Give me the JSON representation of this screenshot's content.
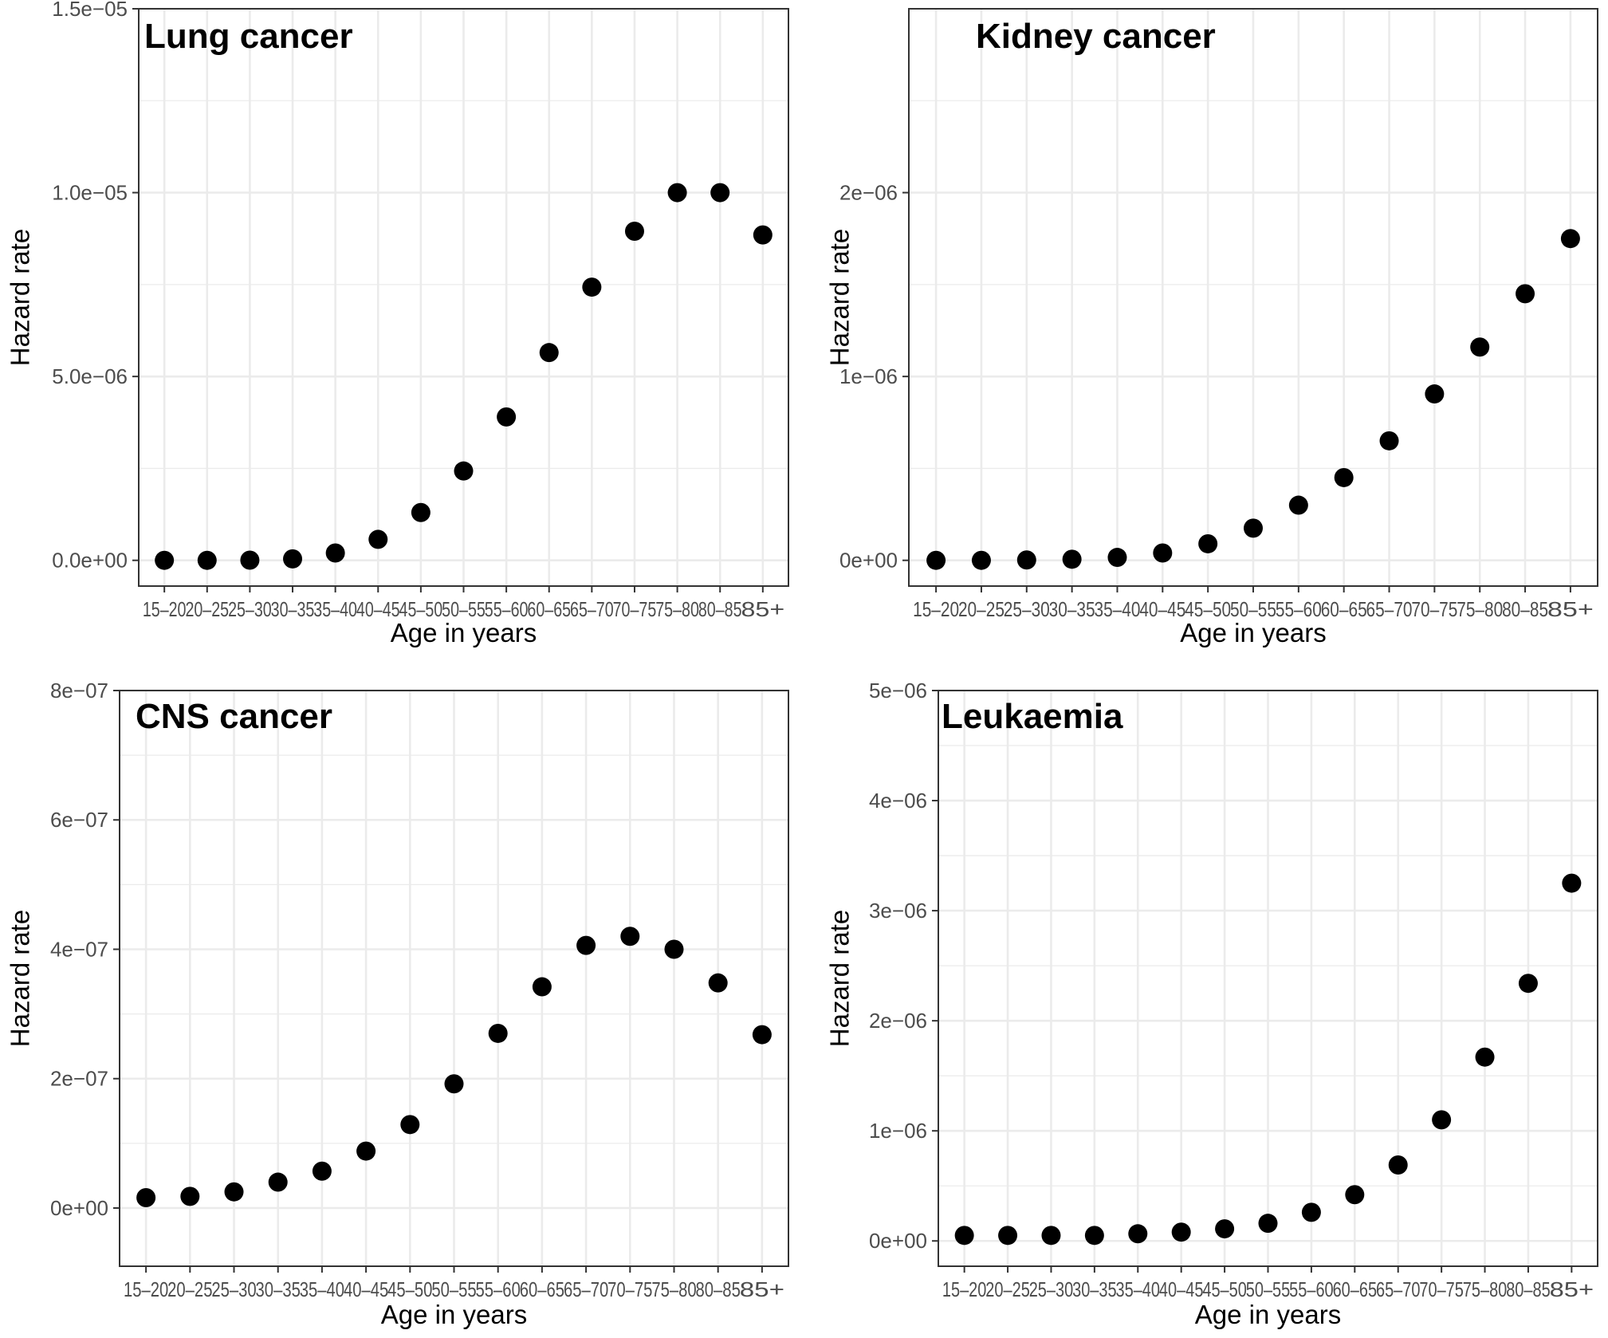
{
  "chart_data": [
    {
      "type": "scatter",
      "title": "Lung cancer",
      "xlabel": "Age in years",
      "ylabel": "Hazard rate",
      "categories": [
        "15–20",
        "20–25",
        "25–30",
        "30–35",
        "35–40",
        "40–45",
        "45–50",
        "50–55",
        "55–60",
        "60–65",
        "65–70",
        "70–75",
        "75–80",
        "80–85",
        "85+"
      ],
      "values": [
        0.0,
        0.0,
        5e-09,
        4e-08,
        2e-07,
        5.7e-07,
        1.3e-06,
        2.43e-06,
        3.9e-06,
        5.65e-06,
        7.43e-06,
        8.95e-06,
        1e-05,
        1e-05,
        8.85e-06
      ],
      "ylim": [
        -7e-07,
        1.5e-05
      ],
      "yticks": [
        0.0,
        5e-06,
        1e-05,
        1.5e-05
      ],
      "ytick_labels": [
        "0.0e+00",
        "5.0e−06",
        "1.0e−05",
        "1.5e−05"
      ]
    },
    {
      "type": "scatter",
      "title": "Kidney cancer",
      "xlabel": "Age in years",
      "ylabel": "Hazard rate",
      "categories": [
        "15–20",
        "20–25",
        "25–30",
        "30–35",
        "35–40",
        "40–45",
        "45–50",
        "50–55",
        "55–60",
        "60–65",
        "65–70",
        "70–75",
        "75–80",
        "80–85",
        "85+"
      ],
      "values": [
        0.0,
        0.0,
        2e-09,
        6e-09,
        1.6e-08,
        4e-08,
        9e-08,
        1.75e-07,
        3e-07,
        4.5e-07,
        6.5e-07,
        9.05e-07,
        1.16e-06,
        1.45e-06,
        1.75e-06
      ],
      "ylim": [
        -1.4e-07,
        3e-06
      ],
      "yticks": [
        0.0,
        1e-06,
        2e-06
      ],
      "ytick_labels": [
        "0e+00",
        "1e−06",
        "2e−06"
      ]
    },
    {
      "type": "scatter",
      "title": "CNS cancer",
      "xlabel": "Age in years",
      "ylabel": "Hazard rate",
      "categories": [
        "15–20",
        "20–25",
        "25–30",
        "30–35",
        "35–40",
        "40–45",
        "45–50",
        "50–55",
        "55–60",
        "60–65",
        "65–70",
        "70–75",
        "75–80",
        "80–85",
        "85+"
      ],
      "values": [
        1.6e-08,
        1.8e-08,
        2.5e-08,
        4e-08,
        5.7e-08,
        8.8e-08,
        1.29e-07,
        1.92e-07,
        2.7e-07,
        3.42e-07,
        4.06e-07,
        4.2e-07,
        4e-07,
        3.48e-07,
        2.68e-07
      ],
      "ylim": [
        -9e-08,
        8e-07
      ],
      "yticks": [
        0.0,
        2e-07,
        4e-07,
        6e-07,
        8e-07
      ],
      "ytick_labels": [
        "0e+00",
        "2e−07",
        "4e−07",
        "6e−07",
        "8e−07"
      ]
    },
    {
      "type": "scatter",
      "title": "Leukaemia",
      "xlabel": "Age in years",
      "ylabel": "Hazard rate",
      "categories": [
        "15–20",
        "20–25",
        "25–30",
        "30–35",
        "35–40",
        "40–45",
        "45–50",
        "50–55",
        "55–60",
        "60–65",
        "65–70",
        "70–75",
        "75–80",
        "80–85",
        "85+"
      ],
      "values": [
        5e-08,
        5e-08,
        5e-08,
        5e-08,
        6.5e-08,
        8e-08,
        1.1e-07,
        1.6e-07,
        2.6e-07,
        4.2e-07,
        6.9e-07,
        1.1e-06,
        1.67e-06,
        2.34e-06,
        3.25e-06
      ],
      "ylim": [
        -2.3e-07,
        5e-06
      ],
      "yticks": [
        0.0,
        1e-06,
        2e-06,
        3e-06,
        4e-06,
        5e-06
      ],
      "ytick_labels": [
        "0e+00",
        "1e−06",
        "2e−06",
        "3e−06",
        "4e−06",
        "5e−06"
      ]
    }
  ]
}
